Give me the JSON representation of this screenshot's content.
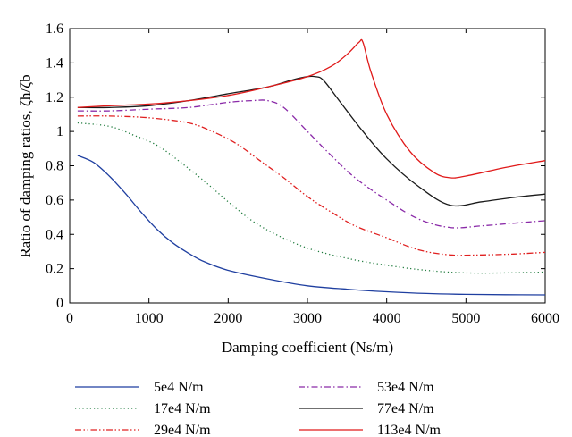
{
  "chart_data": {
    "type": "line",
    "title": "",
    "xlabel": "Damping coefficient (Ns/m)",
    "ylabel": "Ratio of damping ratios, ζh/ζb",
    "xlim": [
      0,
      6000
    ],
    "ylim": [
      0,
      1.6
    ],
    "xticks": [
      0,
      1000,
      2000,
      3000,
      4000,
      5000,
      6000
    ],
    "yticks": [
      0,
      0.2,
      0.4,
      0.6,
      0.8,
      1,
      1.2,
      1.4,
      1.6
    ],
    "xtick_labels": [
      "0",
      "1000",
      "2000",
      "3000",
      "4000",
      "5000",
      "6000"
    ],
    "ytick_labels": [
      "0",
      "0.2",
      "0.4",
      "0.6",
      "0.8",
      "1",
      "1.2",
      "1.4",
      "1.6"
    ],
    "grid": false,
    "legend_position": "bottom",
    "series": [
      {
        "name": "5e4 N/m",
        "color": "#1f3fa0",
        "dash": "solid",
        "x": [
          100,
          300,
          500,
          700,
          900,
          1100,
          1300,
          1500,
          1700,
          2000,
          2500,
          3000,
          3500,
          4000,
          4500,
          5000,
          5500,
          6000
        ],
        "y": [
          0.86,
          0.82,
          0.74,
          0.64,
          0.53,
          0.43,
          0.35,
          0.29,
          0.24,
          0.19,
          0.14,
          0.1,
          0.08,
          0.065,
          0.055,
          0.05,
          0.048,
          0.047
        ]
      },
      {
        "name": "17e4 N/m",
        "color": "#1e7a3c",
        "dash": "dotted",
        "x": [
          100,
          500,
          800,
          1100,
          1400,
          1700,
          2000,
          2300,
          2600,
          3000,
          3500,
          4000,
          4500,
          5000,
          5500,
          6000
        ],
        "y": [
          1.05,
          1.03,
          0.98,
          0.92,
          0.82,
          0.71,
          0.59,
          0.48,
          0.4,
          0.32,
          0.26,
          0.22,
          0.19,
          0.175,
          0.175,
          0.18
        ]
      },
      {
        "name": "29e4 N/m",
        "color": "#e02020",
        "dash": "dashdotdot",
        "x": [
          100,
          500,
          1000,
          1500,
          1800,
          2100,
          2400,
          2700,
          3000,
          3300,
          3600,
          4000,
          4400,
          4800,
          5200,
          5600,
          6000
        ],
        "y": [
          1.09,
          1.09,
          1.08,
          1.05,
          1.0,
          0.93,
          0.83,
          0.73,
          0.62,
          0.53,
          0.45,
          0.38,
          0.31,
          0.28,
          0.28,
          0.285,
          0.295
        ]
      },
      {
        "name": "53e4 N/m",
        "color": "#8a2aa8",
        "dash": "dashdot",
        "x": [
          100,
          500,
          1000,
          1500,
          2000,
          2300,
          2500,
          2700,
          3000,
          3300,
          3600,
          4000,
          4400,
          4800,
          5200,
          5600,
          6000
        ],
        "y": [
          1.12,
          1.12,
          1.13,
          1.14,
          1.17,
          1.18,
          1.18,
          1.14,
          1.0,
          0.86,
          0.73,
          0.6,
          0.49,
          0.44,
          0.45,
          0.465,
          0.48
        ]
      },
      {
        "name": "77e4 N/m",
        "color": "#1a1a1a",
        "dash": "solid",
        "x": [
          100,
          500,
          1000,
          1500,
          2000,
          2500,
          2800,
          3000,
          3100,
          3200,
          3400,
          3700,
          4000,
          4400,
          4800,
          5200,
          5600,
          6000
        ],
        "y": [
          1.14,
          1.14,
          1.15,
          1.18,
          1.22,
          1.26,
          1.3,
          1.32,
          1.32,
          1.3,
          1.18,
          1.0,
          0.84,
          0.68,
          0.57,
          0.59,
          0.615,
          0.635
        ]
      },
      {
        "name": "113e4 N/m",
        "color": "#e01a1a",
        "dash": "solid",
        "x": [
          100,
          500,
          1000,
          1500,
          2000,
          2500,
          3000,
          3300,
          3500,
          3650,
          3700,
          3800,
          4000,
          4300,
          4600,
          4800,
          5000,
          5500,
          6000
        ],
        "y": [
          1.14,
          1.15,
          1.16,
          1.18,
          1.21,
          1.26,
          1.32,
          1.38,
          1.45,
          1.52,
          1.52,
          1.35,
          1.1,
          0.88,
          0.76,
          0.73,
          0.74,
          0.79,
          0.83
        ]
      }
    ]
  }
}
